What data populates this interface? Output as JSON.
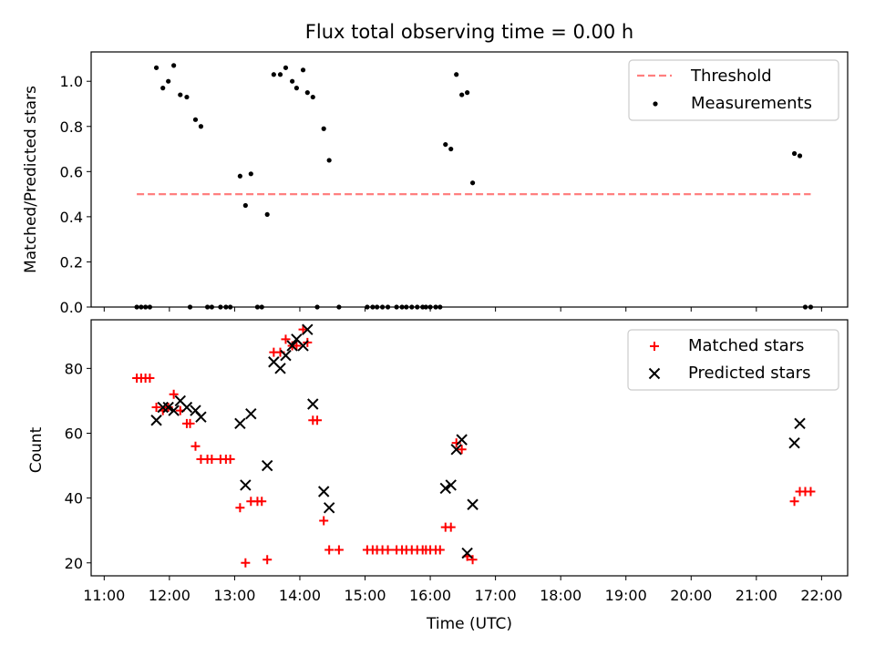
{
  "chart_data": [
    {
      "type": "scatter",
      "title": "Flux total observing time = 0.00 h",
      "xlabel": "",
      "ylabel": "Matched/Predicted stars",
      "xlim": [
        "10:48",
        "22:24"
      ],
      "ylim": [
        0,
        1.13
      ],
      "x_ticks": [
        "11:00",
        "12:00",
        "13:00",
        "14:00",
        "15:00",
        "16:00",
        "17:00",
        "18:00",
        "19:00",
        "20:00",
        "21:00",
        "22:00"
      ],
      "y_ticks": [
        "0.0",
        "0.2",
        "0.4",
        "0.6",
        "0.8",
        "1.0"
      ],
      "legend_position": "top-right",
      "series": [
        {
          "name": "Threshold",
          "kind": "dashed-line",
          "color": "#ff7f7f",
          "points": [
            [
              "11:30",
              0.5
            ],
            [
              "21:50",
              0.5
            ]
          ]
        },
        {
          "name": "Measurements",
          "kind": "dot",
          "color": "#000000",
          "points": [
            [
              "11:30",
              0
            ],
            [
              "11:34",
              0
            ],
            [
              "11:38",
              0
            ],
            [
              "11:42",
              0
            ],
            [
              "11:48",
              1.06
            ],
            [
              "11:54",
              0.97
            ],
            [
              "11:59",
              1.0
            ],
            [
              "12:04",
              1.07
            ],
            [
              "12:10",
              0.94
            ],
            [
              "12:16",
              0.93
            ],
            [
              "12:19",
              0
            ],
            [
              "12:24",
              0.83
            ],
            [
              "12:29",
              0.8
            ],
            [
              "12:35",
              0
            ],
            [
              "12:39",
              0
            ],
            [
              "12:47",
              0
            ],
            [
              "12:52",
              0
            ],
            [
              "12:56",
              0
            ],
            [
              "13:05",
              0.58
            ],
            [
              "13:10",
              0.45
            ],
            [
              "13:15",
              0.59
            ],
            [
              "13:21",
              0
            ],
            [
              "13:25",
              0
            ],
            [
              "13:30",
              0.41
            ],
            [
              "13:36",
              1.03
            ],
            [
              "13:42",
              1.03
            ],
            [
              "13:47",
              1.06
            ],
            [
              "13:53",
              1.0
            ],
            [
              "13:57",
              0.97
            ],
            [
              "14:03",
              1.05
            ],
            [
              "14:07",
              0.95
            ],
            [
              "14:12",
              0.93
            ],
            [
              "14:16",
              0
            ],
            [
              "14:22",
              0.79
            ],
            [
              "14:27",
              0.65
            ],
            [
              "14:36",
              0
            ],
            [
              "15:02",
              0
            ],
            [
              "15:07",
              0
            ],
            [
              "15:11",
              0
            ],
            [
              "15:16",
              0
            ],
            [
              "15:21",
              0
            ],
            [
              "15:29",
              0
            ],
            [
              "15:34",
              0
            ],
            [
              "15:38",
              0
            ],
            [
              "15:43",
              0
            ],
            [
              "15:48",
              0
            ],
            [
              "15:53",
              0
            ],
            [
              "15:56",
              0
            ],
            [
              "16:00",
              0
            ],
            [
              "16:05",
              0
            ],
            [
              "16:09",
              0
            ],
            [
              "16:14",
              0.72
            ],
            [
              "16:19",
              0.7
            ],
            [
              "16:24",
              1.03
            ],
            [
              "16:29",
              0.94
            ],
            [
              "16:34",
              0.95
            ],
            [
              "16:39",
              0.55
            ],
            [
              "21:35",
              0.68
            ],
            [
              "21:40",
              0.67
            ],
            [
              "21:45",
              0
            ],
            [
              "21:50",
              0
            ]
          ]
        }
      ]
    },
    {
      "type": "scatter",
      "title": "",
      "xlabel": "Time (UTC)",
      "ylabel": "Count",
      "xlim": [
        "10:48",
        "22:24"
      ],
      "ylim": [
        16,
        95
      ],
      "x_ticks": [
        "11:00",
        "12:00",
        "13:00",
        "14:00",
        "15:00",
        "16:00",
        "17:00",
        "18:00",
        "19:00",
        "20:00",
        "21:00",
        "22:00"
      ],
      "y_ticks": [
        "20",
        "40",
        "60",
        "80"
      ],
      "legend_position": "top-right",
      "series": [
        {
          "name": "Matched stars",
          "kind": "plus",
          "color": "#ff0000",
          "points": [
            [
              "11:30",
              77
            ],
            [
              "11:34",
              77
            ],
            [
              "11:38",
              77
            ],
            [
              "11:42",
              77
            ],
            [
              "11:48",
              68
            ],
            [
              "11:54",
              67
            ],
            [
              "11:59",
              68
            ],
            [
              "12:04",
              72
            ],
            [
              "12:10",
              67
            ],
            [
              "12:16",
              63
            ],
            [
              "12:19",
              63
            ],
            [
              "12:24",
              56
            ],
            [
              "12:29",
              52
            ],
            [
              "12:35",
              52
            ],
            [
              "12:39",
              52
            ],
            [
              "12:47",
              52
            ],
            [
              "12:52",
              52
            ],
            [
              "12:56",
              52
            ],
            [
              "13:05",
              37
            ],
            [
              "13:10",
              20
            ],
            [
              "13:15",
              39
            ],
            [
              "13:21",
              39
            ],
            [
              "13:25",
              39
            ],
            [
              "13:30",
              21
            ],
            [
              "13:36",
              85
            ],
            [
              "13:42",
              85
            ],
            [
              "13:47",
              89
            ],
            [
              "13:53",
              87
            ],
            [
              "13:57",
              87
            ],
            [
              "14:03",
              92
            ],
            [
              "14:07",
              88
            ],
            [
              "14:12",
              64
            ],
            [
              "14:16",
              64
            ],
            [
              "14:22",
              33
            ],
            [
              "14:27",
              24
            ],
            [
              "14:36",
              24
            ],
            [
              "15:02",
              24
            ],
            [
              "15:07",
              24
            ],
            [
              "15:11",
              24
            ],
            [
              "15:16",
              24
            ],
            [
              "15:21",
              24
            ],
            [
              "15:29",
              24
            ],
            [
              "15:34",
              24
            ],
            [
              "15:38",
              24
            ],
            [
              "15:43",
              24
            ],
            [
              "15:48",
              24
            ],
            [
              "15:53",
              24
            ],
            [
              "15:56",
              24
            ],
            [
              "16:00",
              24
            ],
            [
              "16:05",
              24
            ],
            [
              "16:09",
              24
            ],
            [
              "16:14",
              31
            ],
            [
              "16:19",
              31
            ],
            [
              "16:24",
              57
            ],
            [
              "16:29",
              55
            ],
            [
              "16:34",
              22
            ],
            [
              "16:39",
              21
            ],
            [
              "21:35",
              39
            ],
            [
              "21:40",
              42
            ],
            [
              "21:45",
              42
            ],
            [
              "21:50",
              42
            ]
          ]
        },
        {
          "name": "Predicted stars",
          "kind": "cross",
          "color": "#000000",
          "points": [
            [
              "11:48",
              64
            ],
            [
              "11:54",
              68
            ],
            [
              "11:59",
              68
            ],
            [
              "12:04",
              67
            ],
            [
              "12:10",
              70
            ],
            [
              "12:16",
              68
            ],
            [
              "12:24",
              67
            ],
            [
              "12:29",
              65
            ],
            [
              "13:05",
              63
            ],
            [
              "13:10",
              44
            ],
            [
              "13:15",
              66
            ],
            [
              "13:30",
              50
            ],
            [
              "13:36",
              82
            ],
            [
              "13:42",
              80
            ],
            [
              "13:47",
              84
            ],
            [
              "13:53",
              87
            ],
            [
              "13:57",
              89
            ],
            [
              "14:03",
              87
            ],
            [
              "14:07",
              92
            ],
            [
              "14:12",
              69
            ],
            [
              "14:22",
              42
            ],
            [
              "14:27",
              37
            ],
            [
              "16:14",
              43
            ],
            [
              "16:19",
              44
            ],
            [
              "16:24",
              55
            ],
            [
              "16:29",
              58
            ],
            [
              "16:34",
              23
            ],
            [
              "16:39",
              38
            ],
            [
              "21:35",
              57
            ],
            [
              "21:40",
              63
            ]
          ]
        }
      ]
    }
  ]
}
